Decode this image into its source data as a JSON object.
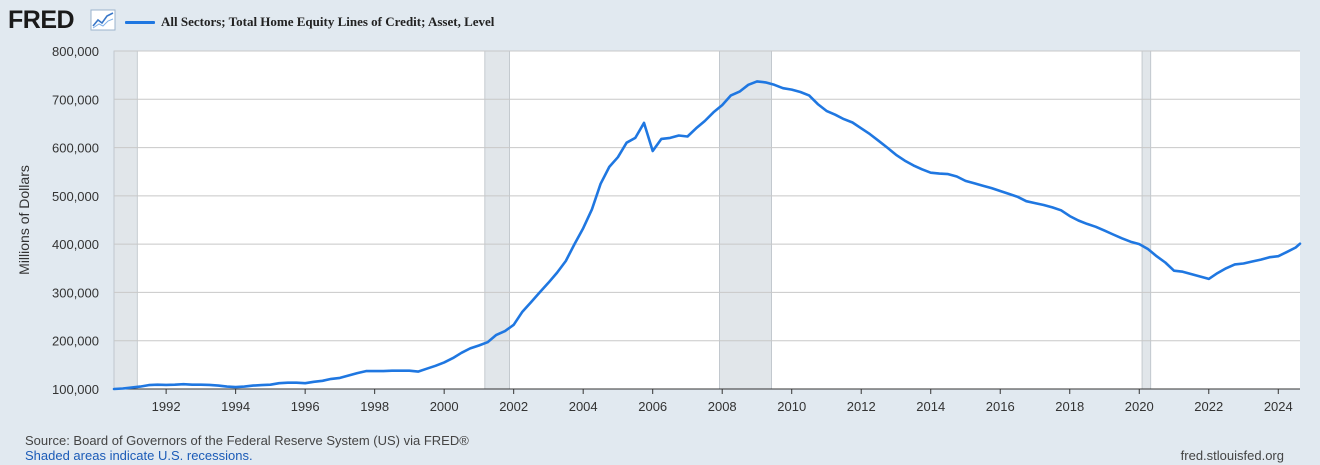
{
  "header": {
    "logo_text": "FRED",
    "logo_icon": "trend-line-icon",
    "series_title": "All Sectors; Total Home Equity Lines of Credit; Asset, Level"
  },
  "colors": {
    "line": "#1f77e1",
    "plot_bg": "#ffffff",
    "page_bg": "#e1e9f0",
    "recession": "#e1e6ea",
    "grid": "#c8c8c8"
  },
  "chart_data": {
    "type": "line",
    "title": "All Sectors; Total Home Equity Lines of Credit; Asset, Level",
    "ylabel": "Millions of Dollars",
    "xlabel": "",
    "xlim": [
      1990.5,
      2024.625
    ],
    "ylim": [
      100000,
      800000
    ],
    "grid": true,
    "legend_position": "top-left",
    "yticks": [
      100000,
      200000,
      300000,
      400000,
      500000,
      600000,
      700000,
      800000
    ],
    "ytick_labels": [
      "100,000",
      "200,000",
      "300,000",
      "400,000",
      "500,000",
      "600,000",
      "700,000",
      "800,000"
    ],
    "xticks": [
      1992,
      1994,
      1996,
      1998,
      2000,
      2002,
      2004,
      2006,
      2008,
      2010,
      2012,
      2014,
      2016,
      2018,
      2020,
      2022,
      2024
    ],
    "xtick_labels": [
      "1992",
      "1994",
      "1996",
      "1998",
      "2000",
      "2002",
      "2004",
      "2006",
      "2008",
      "2010",
      "2012",
      "2014",
      "2016",
      "2018",
      "2020",
      "2022",
      "2024"
    ],
    "recessions": [
      [
        1990.5,
        1991.17
      ],
      [
        2001.17,
        2001.88
      ],
      [
        2007.92,
        2009.42
      ],
      [
        2020.08,
        2020.33
      ]
    ],
    "series": [
      {
        "x": [
          1990.5,
          1990.75,
          1991.0,
          1991.25,
          1991.5,
          1991.75,
          1992.0,
          1992.25,
          1992.5,
          1992.75,
          1993.0,
          1993.25,
          1993.5,
          1993.75,
          1994.0,
          1994.25,
          1994.5,
          1994.75,
          1995.0,
          1995.25,
          1995.5,
          1995.75,
          1996.0,
          1996.25,
          1996.5,
          1996.75,
          1997.0,
          1997.25,
          1997.5,
          1997.75,
          1998.0,
          1998.25,
          1998.5,
          1998.75,
          1999.0,
          1999.25,
          1999.5,
          1999.75,
          2000.0,
          2000.25,
          2000.5,
          2000.75,
          2001.0,
          2001.25,
          2001.5,
          2001.75,
          2002.0,
          2002.25,
          2002.5,
          2002.75,
          2003.0,
          2003.25,
          2003.5,
          2003.75,
          2004.0,
          2004.25,
          2004.5,
          2004.75,
          2005.0,
          2005.25,
          2005.5,
          2005.75,
          2006.0,
          2006.25,
          2006.5,
          2006.75,
          2007.0,
          2007.25,
          2007.5,
          2007.75,
          2008.0,
          2008.25,
          2008.5,
          2008.75,
          2009.0,
          2009.25,
          2009.5,
          2009.75,
          2010.0,
          2010.25,
          2010.5,
          2010.75,
          2011.0,
          2011.25,
          2011.5,
          2011.75,
          2012.0,
          2012.25,
          2012.5,
          2012.75,
          2013.0,
          2013.25,
          2013.5,
          2013.75,
          2014.0,
          2014.25,
          2014.5,
          2014.75,
          2015.0,
          2015.25,
          2015.5,
          2015.75,
          2016.0,
          2016.25,
          2016.5,
          2016.75,
          2017.0,
          2017.25,
          2017.5,
          2017.75,
          2018.0,
          2018.25,
          2018.5,
          2018.75,
          2019.0,
          2019.25,
          2019.5,
          2019.75,
          2020.0,
          2020.25,
          2020.5,
          2020.75,
          2021.0,
          2021.25,
          2021.5,
          2021.75,
          2022.0,
          2022.25,
          2022.5,
          2022.75,
          2023.0,
          2023.25,
          2023.5,
          2023.75,
          2024.0,
          2024.25,
          2024.5,
          2024.625
        ],
        "values": [
          100000,
          101000,
          103000,
          105000,
          108000,
          109000,
          108500,
          109000,
          110000,
          109000,
          109000,
          108500,
          107000,
          105000,
          104000,
          105000,
          107000,
          108000,
          109000,
          112000,
          113000,
          113000,
          112000,
          115000,
          117000,
          121000,
          123000,
          128000,
          133000,
          137000,
          137000,
          137000,
          138000,
          138000,
          138000,
          136000,
          142000,
          148000,
          155000,
          164000,
          175000,
          184000,
          190000,
          197000,
          212000,
          220000,
          233000,
          260000,
          280000,
          300000,
          320000,
          341000,
          365000,
          400000,
          433000,
          472000,
          525000,
          560000,
          580000,
          610000,
          620000,
          651000,
          593000,
          618000,
          620000,
          625000,
          623000,
          640000,
          655000,
          673000,
          688000,
          708000,
          716000,
          730000,
          737000,
          735000,
          730000,
          723000,
          720000,
          715000,
          708000,
          690000,
          676000,
          668000,
          659000,
          652000,
          640000,
          628000,
          614000,
          600000,
          585000,
          573000,
          563000,
          555000,
          548000,
          546000,
          545000,
          540000,
          531000,
          526000,
          521000,
          516000,
          510000,
          504000,
          498000,
          489000,
          485000,
          481000,
          476000,
          470000,
          458000,
          449000,
          442000,
          436000,
          428000,
          420000,
          412000,
          405000,
          400000,
          390000,
          375000,
          362000,
          345000,
          343000,
          338000,
          333000,
          328000,
          340000,
          350000,
          358000,
          360000,
          364000,
          368000,
          373000,
          375000,
          384000,
          393000,
          401000
        ]
      }
    ]
  },
  "footer": {
    "source": "Source: Board of Governors of the Federal Reserve System (US) via FRED®",
    "note": "Shaded areas indicate U.S. recessions.",
    "url": "fred.stlouisfed.org"
  }
}
